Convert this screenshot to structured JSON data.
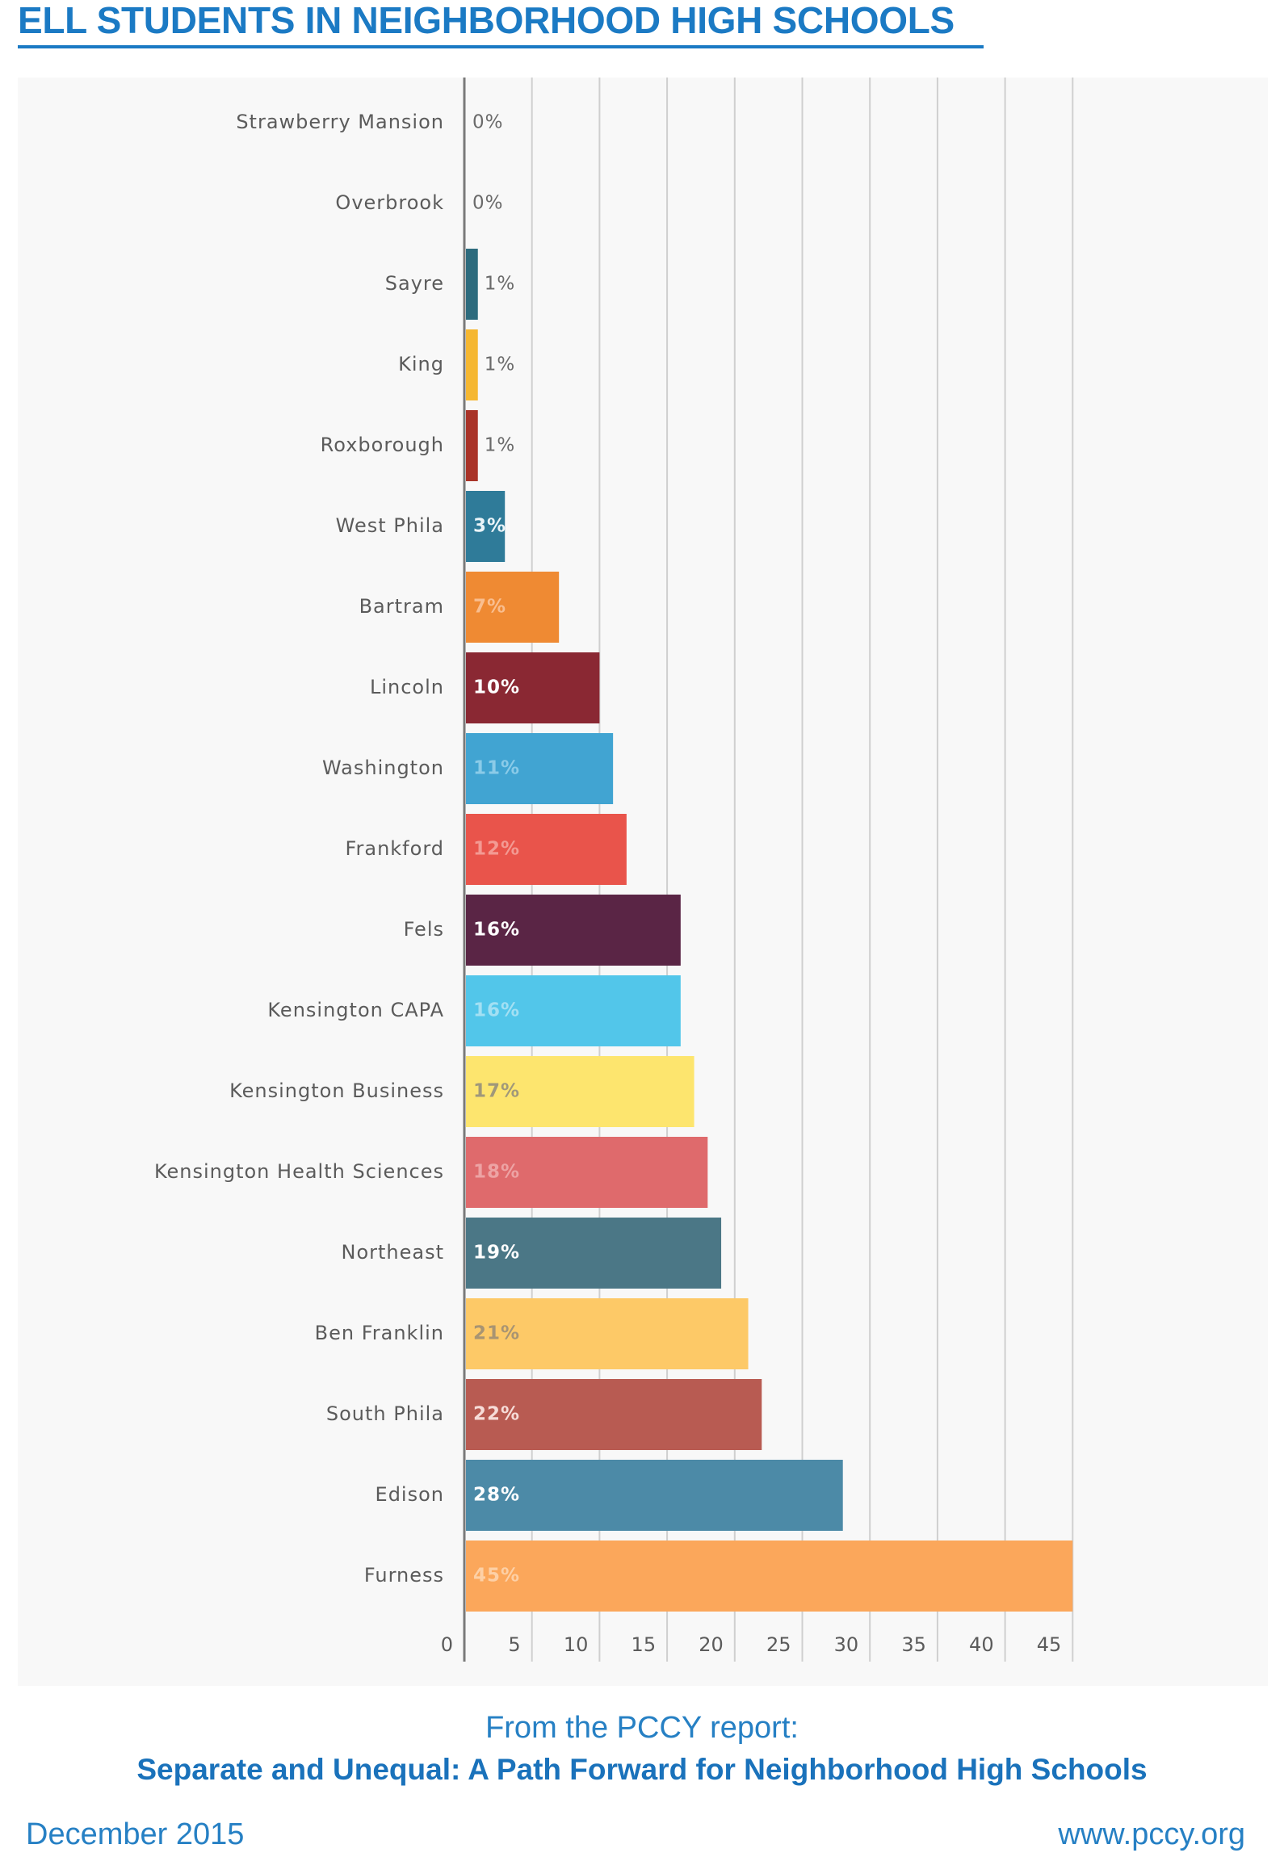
{
  "title": "ELL STUDENTS IN NEIGHBORHOOD HIGH SCHOOLS",
  "chart_data": {
    "type": "bar",
    "orientation": "horizontal",
    "categories": [
      "Strawberry Mansion",
      "Overbrook",
      "Sayre",
      "King",
      "Roxborough",
      "West Phila",
      "Bartram",
      "Lincoln",
      "Washington",
      "Frankford",
      "Fels",
      "Kensington CAPA",
      "Kensington Business",
      "Kensington Health Sciences",
      "Northeast",
      "Ben Franklin",
      "South Phila",
      "Edison",
      "Furness"
    ],
    "values": [
      0,
      0,
      1,
      1,
      1,
      3,
      7,
      10,
      11,
      12,
      16,
      16,
      17,
      18,
      19,
      21,
      22,
      28,
      45
    ],
    "value_labels": [
      "0%",
      "0%",
      "1%",
      "1%",
      "1%",
      "3%",
      "7%",
      "10%",
      "11%",
      "12%",
      "16%",
      "16%",
      "17%",
      "18%",
      "19%",
      "21%",
      "22%",
      "28%",
      "45%"
    ],
    "bar_colors": [
      null,
      null,
      "#2d6b7d",
      "#f5b731",
      "#a93328",
      "#2f7b99",
      "#ef8a33",
      "#8a2833",
      "#41a4d2",
      "#e9544b",
      "#5a2545",
      "#52c6ea",
      "#fde56e",
      "#df6a6c",
      "#4b7786",
      "#fdc967",
      "#b85b52",
      "#4c8aa7",
      "#fba75b"
    ],
    "label_colors": [
      "#6a6a6a",
      "#6a6a6a",
      "#6a6a6a",
      "#6a6a6a",
      "#6a6a6a",
      "#eaf4f8",
      "#f9be8f",
      "#ffffff",
      "#8bcbe8",
      "#f39a93",
      "#ffffff",
      "#a3e0f3",
      "#a0987a",
      "#eda3a4",
      "#ffffff",
      "#a89472",
      "#f6dcd8",
      "#ffffff",
      "#fdd0a6"
    ],
    "xticks": [
      0,
      5,
      10,
      15,
      20,
      25,
      30,
      35,
      40,
      45
    ],
    "xlim": [
      0,
      45
    ],
    "grid": true,
    "legend": "none"
  },
  "footer": {
    "source_intro": "From the PCCY report:",
    "report_title": "Separate and Unequal: A Path Forward for Neighborhood High Schools",
    "date": "December 2015",
    "website": "www.pccy.org"
  },
  "colors": {
    "brand_blue": "#1b7ac4",
    "footer_blue": "#2680c4"
  }
}
